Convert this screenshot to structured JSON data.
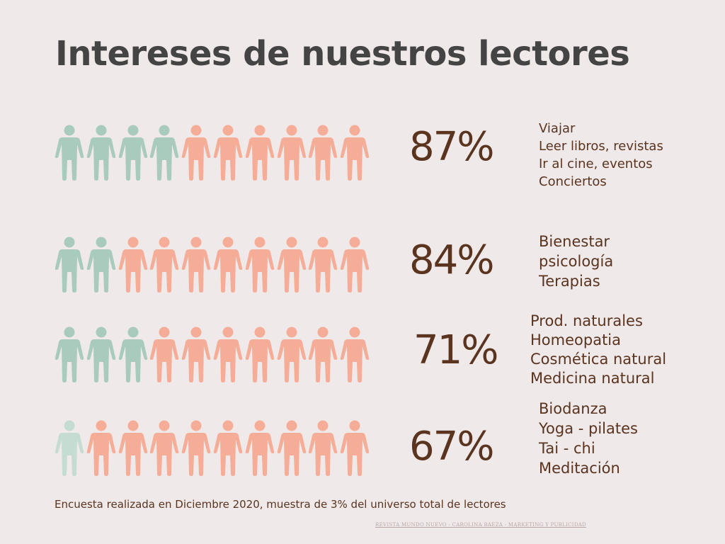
{
  "title": "Intereses de nuestros lectores",
  "colors": {
    "background": "#f0e9e9",
    "green": "#a8cbbd",
    "light_green": "#c5dcd3",
    "salmon": "#f6ad98",
    "brown": "#5a341f",
    "title": "#444444"
  },
  "chart_data": {
    "type": "pictograph",
    "icons_per_row": 10,
    "icon": "person-icon",
    "rows": [
      {
        "percent_label": "87%",
        "value": 87,
        "green_icons": 4,
        "items": [
          "Viajar",
          "Leer libros, revistas",
          "Ir al cine, eventos",
          "Conciertos"
        ]
      },
      {
        "percent_label": "84%",
        "value": 84,
        "green_icons": 2,
        "items": [
          "Bienestar",
          "psicología",
          "Terapias"
        ]
      },
      {
        "percent_label": "71%",
        "value": 71,
        "green_icons": 3,
        "items": [
          "Prod. naturales",
          "Homeopatia",
          "Cosmética natural",
          "Medicina natural"
        ]
      },
      {
        "percent_label": "67%",
        "value": 67,
        "green_icons": 1,
        "items": [
          "Biodanza",
          "Yoga - pilates",
          "Tai - chi",
          "Meditación"
        ]
      }
    ]
  },
  "footnote": "Encuesta realizada en Diciembre 2020, muestra de 3% del universo total de lectores",
  "credit": "REVISTA MUNDO NUEVO - CAROLINA BAEZA - MARKETING Y PUBLICIDAD"
}
